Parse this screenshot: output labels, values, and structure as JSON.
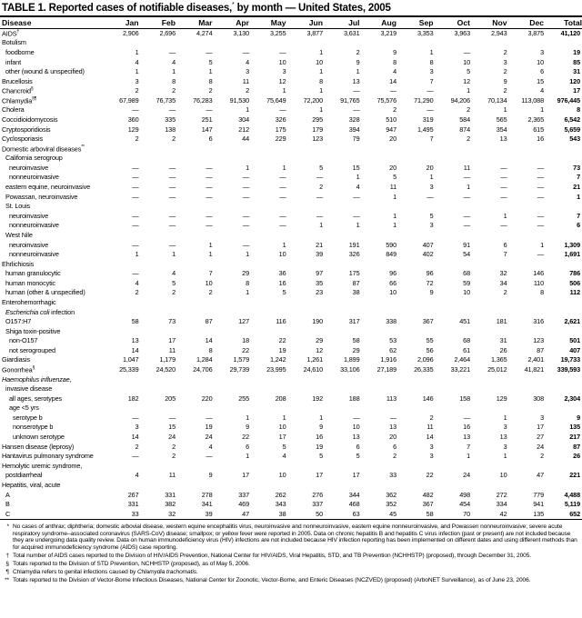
{
  "title": {
    "text": "TABLE 1. Reported cases of notifiable diseases,",
    "sup": "*",
    "rest": " by month — United States, 2005"
  },
  "columns": [
    "Disease",
    "Jan",
    "Feb",
    "Mar",
    "Apr",
    "May",
    "Jun",
    "Jul",
    "Aug",
    "Sep",
    "Oct",
    "Nov",
    "Dec",
    "Total"
  ],
  "rows": [
    {
      "label": "AIDS",
      "sup": "†",
      "indent": 0,
      "values": [
        "2,906",
        "2,696",
        "4,274",
        "3,130",
        "3,255",
        "3,877",
        "3,631",
        "3,219",
        "3,353",
        "3,963",
        "2,943",
        "3,875",
        "41,120"
      ]
    },
    {
      "label": "Botulism",
      "indent": 0
    },
    {
      "label": "foodborne",
      "indent": 1,
      "values": [
        "1",
        "—",
        "—",
        "—",
        "—",
        "1",
        "2",
        "9",
        "1",
        "—",
        "2",
        "3",
        "19"
      ]
    },
    {
      "label": "infant",
      "indent": 1,
      "values": [
        "4",
        "4",
        "5",
        "4",
        "10",
        "10",
        "9",
        "8",
        "8",
        "10",
        "3",
        "10",
        "85"
      ]
    },
    {
      "label": "other (wound & unspecified)",
      "indent": 1,
      "values": [
        "1",
        "1",
        "1",
        "3",
        "3",
        "1",
        "1",
        "4",
        "3",
        "5",
        "2",
        "6",
        "31"
      ]
    },
    {
      "label": "Brucellosis",
      "indent": 0,
      "values": [
        "3",
        "8",
        "8",
        "11",
        "12",
        "8",
        "13",
        "14",
        "7",
        "12",
        "9",
        "15",
        "120"
      ]
    },
    {
      "label": "Chancroid",
      "sup": "§",
      "indent": 0,
      "values": [
        "2",
        "2",
        "2",
        "2",
        "1",
        "1",
        "—",
        "—",
        "—",
        "1",
        "2",
        "4",
        "17"
      ]
    },
    {
      "label": "Chlamydia",
      "sup": "§¶",
      "indent": 0,
      "values": [
        "67,989",
        "76,735",
        "76,283",
        "91,530",
        "75,649",
        "72,200",
        "91,765",
        "75,576",
        "71,290",
        "94,206",
        "70,134",
        "113,088",
        "976,445"
      ]
    },
    {
      "label": "Cholera",
      "indent": 0,
      "values": [
        "—",
        "—",
        "—",
        "1",
        "—",
        "1",
        "—",
        "2",
        "—",
        "2",
        "1",
        "1",
        "8"
      ]
    },
    {
      "label": "Coccidioidomycosis",
      "indent": 0,
      "values": [
        "360",
        "335",
        "251",
        "304",
        "326",
        "295",
        "328",
        "510",
        "319",
        "584",
        "565",
        "2,365",
        "6,542"
      ]
    },
    {
      "label": "Cryptosporidiosis",
      "indent": 0,
      "values": [
        "129",
        "138",
        "147",
        "212",
        "175",
        "179",
        "394",
        "947",
        "1,495",
        "874",
        "354",
        "615",
        "5,659"
      ]
    },
    {
      "label": "Cyclosporiasis",
      "indent": 0,
      "values": [
        "2",
        "2",
        "6",
        "44",
        "229",
        "123",
        "79",
        "20",
        "7",
        "2",
        "13",
        "16",
        "543"
      ]
    },
    {
      "label": "Domestic arboviral diseases",
      "sup": "**",
      "indent": 0
    },
    {
      "label": "California serogroup",
      "indent": 1
    },
    {
      "label": "neuroinvasive",
      "indent": 2,
      "values": [
        "—",
        "—",
        "—",
        "1",
        "1",
        "5",
        "15",
        "20",
        "20",
        "11",
        "—",
        "—",
        "73"
      ]
    },
    {
      "label": "nonneuroinvasive",
      "indent": 2,
      "values": [
        "—",
        "—",
        "—",
        "—",
        "—",
        "—",
        "1",
        "5",
        "1",
        "—",
        "—",
        "—",
        "7"
      ]
    },
    {
      "label": "eastern equine, neuroinvasive",
      "indent": 1,
      "values": [
        "—",
        "—",
        "—",
        "—",
        "—",
        "2",
        "4",
        "11",
        "3",
        "1",
        "—",
        "—",
        "21"
      ]
    },
    {
      "label": "Powassan, neuroinvasive",
      "indent": 1,
      "values": [
        "—",
        "—",
        "—",
        "—",
        "—",
        "—",
        "—",
        "1",
        "—",
        "—",
        "—",
        "—",
        "1"
      ]
    },
    {
      "label": "St. Louis",
      "indent": 1
    },
    {
      "label": "neuroinvasive",
      "indent": 2,
      "values": [
        "—",
        "—",
        "—",
        "—",
        "—",
        "—",
        "—",
        "1",
        "5",
        "—",
        "1",
        "—",
        "7"
      ]
    },
    {
      "label": "nonneuroinvasive",
      "indent": 2,
      "values": [
        "—",
        "—",
        "—",
        "—",
        "—",
        "1",
        "1",
        "1",
        "3",
        "—",
        "—",
        "—",
        "6"
      ]
    },
    {
      "label": "West Nile",
      "indent": 1
    },
    {
      "label": "neuroinvasive",
      "indent": 2,
      "values": [
        "—",
        "—",
        "1",
        "—",
        "1",
        "21",
        "191",
        "590",
        "407",
        "91",
        "6",
        "1",
        "1,309"
      ]
    },
    {
      "label": "nonneuroinvasive",
      "indent": 2,
      "values": [
        "1",
        "1",
        "1",
        "1",
        "10",
        "39",
        "326",
        "849",
        "402",
        "54",
        "7",
        "—",
        "1,691"
      ]
    },
    {
      "label": "Ehrlichiosis",
      "indent": 0
    },
    {
      "label": "human granulocytic",
      "indent": 1,
      "values": [
        "—",
        "4",
        "7",
        "29",
        "36",
        "97",
        "175",
        "96",
        "96",
        "68",
        "32",
        "146",
        "786"
      ]
    },
    {
      "label": "human monocytic",
      "indent": 1,
      "values": [
        "4",
        "5",
        "10",
        "8",
        "16",
        "35",
        "87",
        "66",
        "72",
        "59",
        "34",
        "110",
        "506"
      ]
    },
    {
      "label": "human (other & unspecified)",
      "indent": 1,
      "values": [
        "2",
        "2",
        "2",
        "1",
        "5",
        "23",
        "38",
        "10",
        "9",
        "10",
        "2",
        "8",
        "112"
      ]
    },
    {
      "label": "Enterohemorrhagic",
      "indent": 0
    },
    {
      "italic": "Escherichia coli",
      "label": " infection",
      "indent": 1
    },
    {
      "label": "O157:H7",
      "indent": 1,
      "values": [
        "58",
        "73",
        "87",
        "127",
        "116",
        "190",
        "317",
        "338",
        "367",
        "451",
        "181",
        "316",
        "2,621"
      ]
    },
    {
      "label": "Shiga toxin-positive",
      "indent": 1
    },
    {
      "label": "non-O157",
      "indent": 2,
      "values": [
        "13",
        "17",
        "14",
        "18",
        "22",
        "29",
        "58",
        "53",
        "55",
        "68",
        "31",
        "123",
        "501"
      ]
    },
    {
      "label": "not serogrouped",
      "indent": 2,
      "values": [
        "14",
        "11",
        "8",
        "22",
        "19",
        "12",
        "29",
        "62",
        "56",
        "61",
        "26",
        "87",
        "407"
      ]
    },
    {
      "label": "Giardiasis",
      "indent": 0,
      "values": [
        "1,047",
        "1,179",
        "1,284",
        "1,579",
        "1,242",
        "1,261",
        "1,899",
        "1,916",
        "2,096",
        "2,464",
        "1,365",
        "2,401",
        "19,733"
      ]
    },
    {
      "label": "Gonorrhea",
      "sup": "§",
      "indent": 0,
      "values": [
        "25,339",
        "24,520",
        "24,706",
        "29,739",
        "23,995",
        "24,610",
        "33,106",
        "27,189",
        "26,335",
        "33,221",
        "25,012",
        "41,821",
        "339,593"
      ]
    },
    {
      "italic": "Haemophilus influenzae,",
      "label": "",
      "indent": 0
    },
    {
      "label": "invasive disease",
      "indent": 1
    },
    {
      "label": "all ages, serotypes",
      "indent": 2,
      "values": [
        "182",
        "205",
        "220",
        "255",
        "208",
        "192",
        "188",
        "113",
        "146",
        "158",
        "129",
        "308",
        "2,304"
      ]
    },
    {
      "label": "age <5 yrs",
      "indent": 2
    },
    {
      "label": "serotype b",
      "indent": 3,
      "values": [
        "—",
        "—",
        "—",
        "1",
        "1",
        "1",
        "—",
        "—",
        "2",
        "—",
        "1",
        "3",
        "9"
      ]
    },
    {
      "label": "nonserotype b",
      "indent": 3,
      "values": [
        "3",
        "15",
        "19",
        "9",
        "10",
        "9",
        "10",
        "13",
        "11",
        "16",
        "3",
        "17",
        "135"
      ]
    },
    {
      "label": "unknown serotype",
      "indent": 3,
      "values": [
        "14",
        "24",
        "24",
        "22",
        "17",
        "16",
        "13",
        "20",
        "14",
        "13",
        "13",
        "27",
        "217"
      ]
    },
    {
      "label": "Hansen disease (leprosy)",
      "indent": 0,
      "values": [
        "2",
        "2",
        "4",
        "6",
        "5",
        "19",
        "6",
        "6",
        "3",
        "7",
        "3",
        "24",
        "87"
      ]
    },
    {
      "label": "Hantavirus pulmonary syndrome",
      "indent": 0,
      "values": [
        "—",
        "2",
        "—",
        "1",
        "4",
        "5",
        "5",
        "2",
        "3",
        "1",
        "1",
        "2",
        "26"
      ]
    },
    {
      "label": "Hemolytic uremic syndrome,",
      "indent": 0
    },
    {
      "label": "postdiarrheal",
      "indent": 1,
      "values": [
        "4",
        "11",
        "9",
        "17",
        "10",
        "17",
        "17",
        "33",
        "22",
        "24",
        "10",
        "47",
        "221"
      ]
    },
    {
      "label": "Hepatitis, viral, acute",
      "indent": 0
    },
    {
      "label": "A",
      "indent": 1,
      "values": [
        "267",
        "331",
        "278",
        "337",
        "262",
        "276",
        "344",
        "362",
        "482",
        "498",
        "272",
        "779",
        "4,488"
      ]
    },
    {
      "label": "B",
      "indent": 1,
      "values": [
        "331",
        "382",
        "341",
        "469",
        "343",
        "337",
        "468",
        "352",
        "367",
        "454",
        "334",
        "941",
        "5,119"
      ]
    },
    {
      "label": "C",
      "indent": 1,
      "values": [
        "33",
        "32",
        "39",
        "47",
        "38",
        "50",
        "63",
        "45",
        "58",
        "70",
        "42",
        "135",
        "652"
      ]
    }
  ],
  "footnotes": [
    {
      "mark": "*",
      "text": "No cases of anthrax; diphtheria; domestic arbovial disease, western equine encephalitis virus, neuroinvasive and nonneuroinvasive, eastern equine nonneuroinvasive, and Powassen nonneuroinvasive; severe acute respiratory syndrome–associated coronavirus (SARS-CoV) disease; smallpox; or yellow fever were reported in 2005. Data on chronic hepatitis B and hepatitis C virus infection (past or present) are not included because they are undergoing data quality review. Data on human immunodeficiency virus (HIV) infections are not included because HIV infection reporting has been implemented on different dates and using different methods than for acquired immunodeficiency syndrome (AIDS) case reporting."
    },
    {
      "mark": "†",
      "text": "Total number of AIDS cases reported to the Division of HIV/AIDS Prevention, National Center for HIV/AIDS, Viral Hepatitis, STD, and TB Prevention (NCHHSTP) (proposed), through December 31, 2005."
    },
    {
      "mark": "§",
      "text": "Totals reported to the Division of STD Prevention, NCHHSTP (proposed), as of May 5, 2006."
    },
    {
      "mark": "¶",
      "text": "Chlamydia refers to genital infections caused by ",
      "italic": "Chlamydia trachomatis",
      "after": "."
    },
    {
      "mark": "**",
      "text": "Totals reported to the Division of Vector-Borne Infectious Diseases, National Center for Zoonotic, Vector-Borne, and Enteric Diseases (NCZVED) (proposed) (ArboNET Surveillance), as of June 23, 2006."
    }
  ]
}
